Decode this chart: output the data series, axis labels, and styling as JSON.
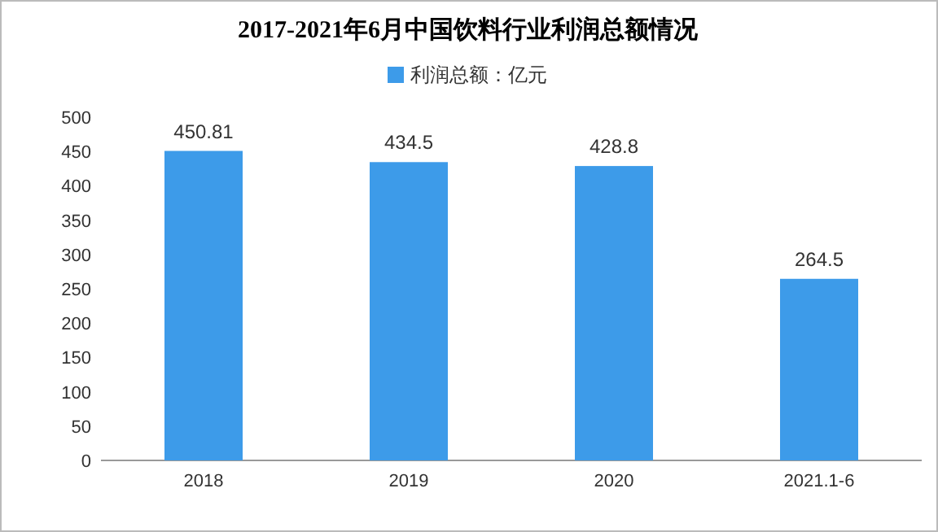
{
  "chart_data": {
    "type": "bar",
    "title": "2017-2021年6月中国饮料行业利润总额情况",
    "categories": [
      "2018",
      "2019",
      "2020",
      "2021.1-6"
    ],
    "series": [
      {
        "name": "利润总额：亿元",
        "color": "#3d9be9",
        "values": [
          450.81,
          434.5,
          428.8,
          264.5
        ]
      }
    ],
    "ylim": [
      0,
      500
    ],
    "yticks": [
      0,
      50,
      100,
      150,
      200,
      250,
      300,
      350,
      400,
      450,
      500
    ],
    "data_labels": true,
    "legend": "top"
  }
}
